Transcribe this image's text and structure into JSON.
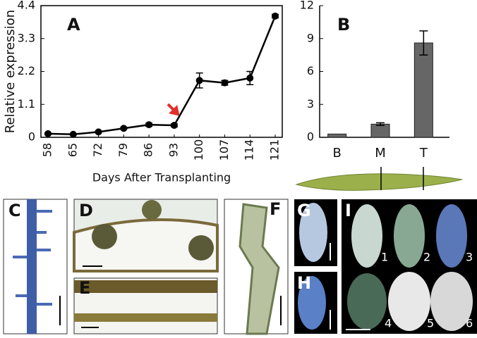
{
  "chart_data": [
    {
      "type": "line",
      "panel_label": "A",
      "ylabel": "Relative expression",
      "xlabel": "Days After Transplanting",
      "categories": [
        "58",
        "65",
        "72",
        "79",
        "86",
        "93",
        "100",
        "107",
        "114",
        "121"
      ],
      "values": [
        0.12,
        0.1,
        0.18,
        0.3,
        0.42,
        0.4,
        1.9,
        1.82,
        1.98,
        4.05
      ],
      "errors": [
        0.03,
        0.02,
        0.03,
        0.03,
        0.05,
        0.05,
        0.25,
        0.08,
        0.22,
        0.06
      ],
      "color": "#000000",
      "ylim": [
        0,
        4.4
      ],
      "yticks": [
        0,
        1.1,
        2.2,
        3.3,
        4.4
      ]
    },
    {
      "type": "bar",
      "panel_label": "B",
      "categories": [
        "B",
        "M",
        "T"
      ],
      "values": [
        0.3,
        1.2,
        8.6
      ],
      "errors": [
        0,
        0.12,
        1.1
      ],
      "color": "#666666",
      "ylim": [
        0,
        12
      ],
      "yticks": [
        0,
        3,
        6,
        9,
        12
      ]
    }
  ],
  "panels": {
    "labels": [
      "C",
      "D",
      "E",
      "F",
      "G",
      "H",
      "I"
    ],
    "numbers": [
      "1",
      "2",
      "3",
      "4",
      "5",
      "6"
    ]
  }
}
